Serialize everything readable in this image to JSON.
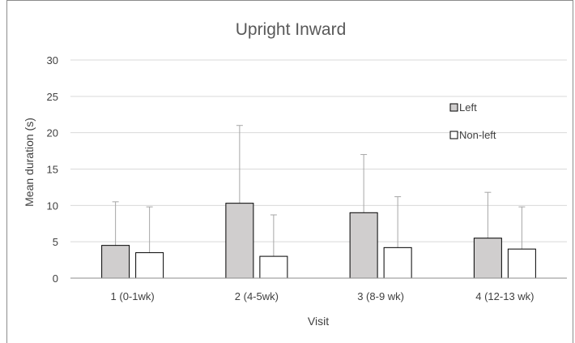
{
  "chart_data": {
    "type": "bar",
    "title": "Upright Inward",
    "xlabel": "Visit",
    "ylabel": "Mean duration (s)",
    "ylim": [
      0,
      30
    ],
    "yticks": [
      0,
      5,
      10,
      15,
      20,
      25,
      30
    ],
    "grid": true,
    "legend_position": "top-right",
    "categories": [
      "1 (0-1wk)",
      "2 (4-5wk)",
      "3 (8-9 wk)",
      "4 (12-13 wk)"
    ],
    "series": [
      {
        "name": "Left",
        "color": "#d0cece",
        "values": [
          4.5,
          10.3,
          9.0,
          5.5
        ],
        "error_upper": [
          10.5,
          21.0,
          17.0,
          11.8
        ]
      },
      {
        "name": "Non-left",
        "color": "#ffffff",
        "values": [
          3.5,
          3.0,
          4.2,
          4.0
        ],
        "error_upper": [
          9.8,
          8.7,
          11.2,
          9.8
        ]
      }
    ]
  }
}
